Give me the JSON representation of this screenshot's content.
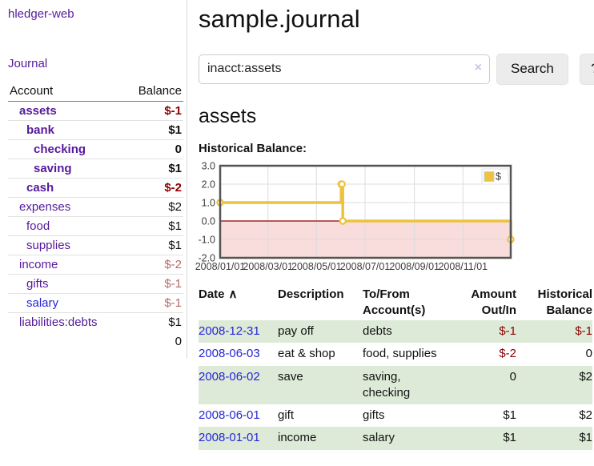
{
  "colors": {
    "link_purple": "#551a9b",
    "link_blue": "#2626d8",
    "negative_strong": "#8b0000",
    "negative_muted": "#b36b6b",
    "row_green": "#deead8",
    "chart_line_gold": "#edc240"
  },
  "app": {
    "brand": "hledger-web"
  },
  "sidebar": {
    "journal_link": "Journal",
    "accounts": {
      "headers": {
        "account": "Account",
        "balance": "Balance"
      },
      "rows": [
        {
          "account": "assets",
          "indent": 1,
          "bold": true,
          "link_color": "purple",
          "balance": "$-1",
          "balance_style": "neg-strong"
        },
        {
          "account": "bank",
          "indent": 2,
          "bold": true,
          "link_color": "purple",
          "balance": "$1",
          "balance_style": "normal"
        },
        {
          "account": "checking",
          "indent": 3,
          "bold": true,
          "link_color": "purple",
          "balance": "0",
          "balance_style": "normal"
        },
        {
          "account": "saving",
          "indent": 3,
          "bold": true,
          "link_color": "purple",
          "balance": "$1",
          "balance_style": "normal"
        },
        {
          "account": "cash",
          "indent": 2,
          "bold": true,
          "link_color": "purple",
          "balance": "$-2",
          "balance_style": "neg-strong"
        },
        {
          "account": "expenses",
          "indent": 1,
          "bold": false,
          "link_color": "purple",
          "balance": "$2",
          "balance_style": "normal"
        },
        {
          "account": "food",
          "indent": 2,
          "bold": false,
          "link_color": "purple",
          "balance": "$1",
          "balance_style": "normal"
        },
        {
          "account": "supplies",
          "indent": 2,
          "bold": false,
          "link_color": "purple",
          "balance": "$1",
          "balance_style": "normal"
        },
        {
          "account": "income",
          "indent": 1,
          "bold": false,
          "link_color": "purple",
          "balance": "$-2",
          "balance_style": "neg-muted"
        },
        {
          "account": "gifts",
          "indent": 2,
          "bold": false,
          "link_color": "purple",
          "balance": "$-1",
          "balance_style": "neg-muted"
        },
        {
          "account": "salary",
          "indent": 2,
          "bold": false,
          "link_color": "blue",
          "balance": "$-1",
          "balance_style": "neg-muted"
        },
        {
          "account": "liabilities:debts",
          "indent": 1,
          "bold": false,
          "link_color": "purple",
          "balance": "$1",
          "balance_style": "normal"
        }
      ],
      "total": "0"
    }
  },
  "header": {
    "title": "sample.journal"
  },
  "search": {
    "value": "inacct:assets",
    "clear_icon": "×",
    "button_label": "Search",
    "help_label": "?"
  },
  "account_page": {
    "heading": "assets"
  },
  "chart_data": {
    "type": "line",
    "step": true,
    "title": "Historical Balance:",
    "series": [
      {
        "name": "$",
        "color": "#edc240",
        "points": [
          [
            "2008-01-01",
            1
          ],
          [
            "2008-06-01",
            2
          ],
          [
            "2008-06-02",
            2
          ],
          [
            "2008-06-03",
            0
          ],
          [
            "2008-12-31",
            -1
          ]
        ]
      }
    ],
    "x_range": [
      "2008-01-01",
      "2008-12-31"
    ],
    "x_ticks": [
      "2008/01/01",
      "2008/03/01",
      "2008/05/01",
      "2008/07/01",
      "2008/09/01",
      "2008/11/01"
    ],
    "y_ticks": [
      "3.0",
      "2.0",
      "1.0",
      "0.0",
      "-1.0",
      "-2.0"
    ],
    "ylim": [
      -2,
      3
    ],
    "grid": true,
    "legend_position": "top-right",
    "negative_region_color": "#f9dcdc",
    "zero_line_color": "#8b0000",
    "grid_color": "#dcdcdc",
    "border_color": "#545454"
  },
  "register": {
    "headers": [
      {
        "label": "Date",
        "sort_icon": "∧",
        "align": "left"
      },
      {
        "label": "Description",
        "align": "left"
      },
      {
        "label": "To/From Account(s)",
        "align": "left"
      },
      {
        "label": "Amount Out/In",
        "align": "right"
      },
      {
        "label": "Historical Balance",
        "align": "right"
      }
    ],
    "rows": [
      {
        "date": "2008-12-31",
        "description": "pay off",
        "accounts": "debts",
        "amount": "$-1",
        "amount_negative": true,
        "balance": "$-1",
        "balance_negative": true,
        "shaded": true
      },
      {
        "date": "2008-06-03",
        "description": "eat & shop",
        "accounts": "food, supplies",
        "amount": "$-2",
        "amount_negative": true,
        "balance": "0",
        "balance_negative": false,
        "shaded": false
      },
      {
        "date": "2008-06-02",
        "description": "save",
        "accounts": "saving, checking",
        "amount": "0",
        "amount_negative": false,
        "balance": "$2",
        "balance_negative": false,
        "shaded": true
      },
      {
        "date": "2008-06-01",
        "description": "gift",
        "accounts": "gifts",
        "amount": "$1",
        "amount_negative": false,
        "balance": "$2",
        "balance_negative": false,
        "shaded": false
      },
      {
        "date": "2008-01-01",
        "description": "income",
        "accounts": "salary",
        "amount": "$1",
        "amount_negative": false,
        "balance": "$1",
        "balance_negative": false,
        "shaded": true
      }
    ]
  }
}
